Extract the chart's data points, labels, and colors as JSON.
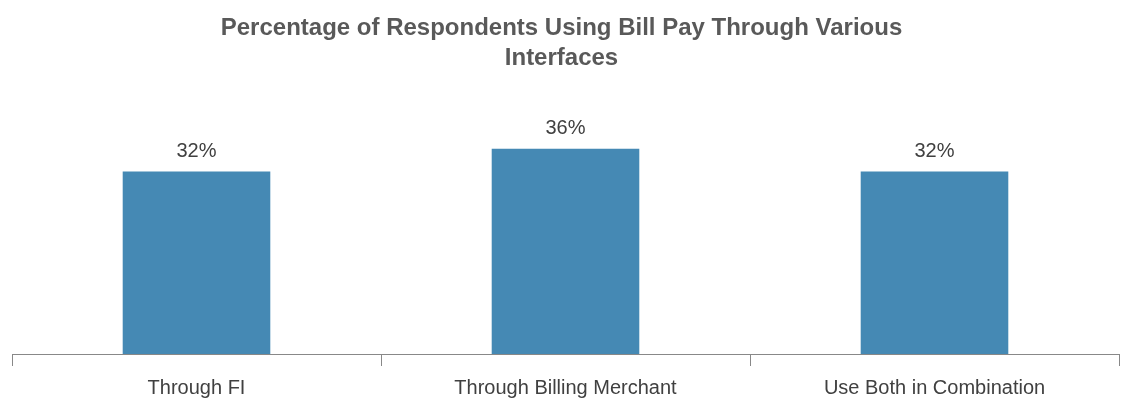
{
  "chart_data": {
    "type": "bar",
    "title": "Percentage of Respondents Using Bill Pay Through Various Interfaces",
    "categories": [
      "Through FI",
      "Through Billing Merchant",
      "Use Both in Combination"
    ],
    "values": [
      32,
      36,
      32
    ],
    "color": "#4589b4",
    "data_labels": true,
    "value_labels": [
      "32%",
      "36%",
      "32%"
    ],
    "legend": false,
    "grid": false
  }
}
